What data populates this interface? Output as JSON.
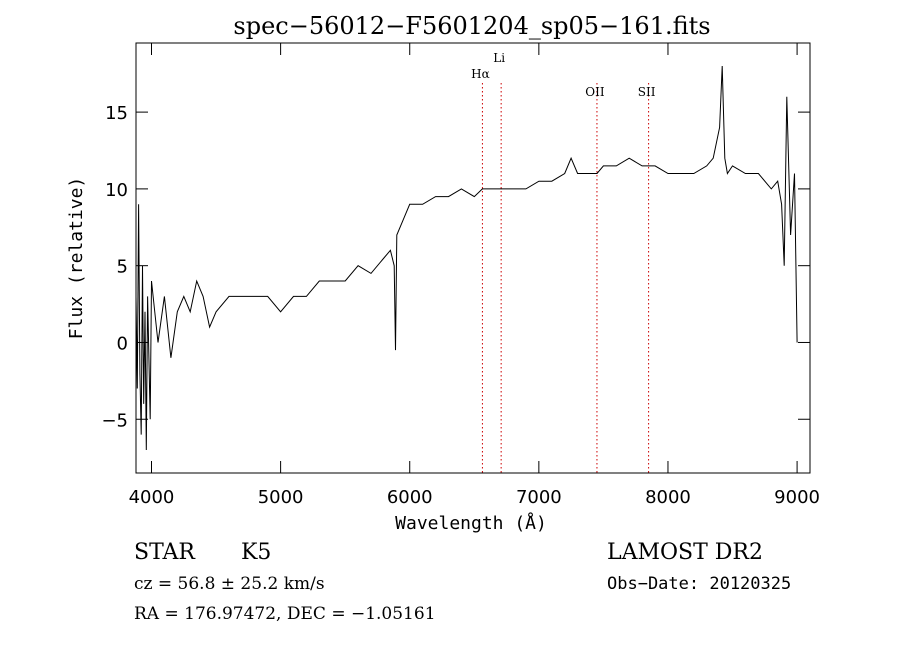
{
  "chart_data": {
    "type": "line",
    "title": "spec−56012−F5601204_sp05−161.fits",
    "xlabel": "Wavelength (Å)",
    "ylabel": "Flux (relative)",
    "xlim": [
      3880,
      9100
    ],
    "ylim": [
      -8.5,
      19.5
    ],
    "x_ticks": [
      4000,
      5000,
      6000,
      7000,
      8000,
      9000
    ],
    "y_ticks": [
      -5,
      0,
      5,
      10,
      15
    ],
    "colors": {
      "spectrum": "#000000",
      "lines": "#cc0000"
    },
    "series": [
      {
        "x": [
          3880,
          3890,
          3900,
          3910,
          3920,
          3930,
          3940,
          3950,
          3960,
          3970,
          3980,
          3990,
          4000,
          4050,
          4100,
          4150,
          4200,
          4250,
          4300,
          4350,
          4400,
          4450,
          4500,
          4600,
          4700,
          4800,
          4900,
          5000,
          5100,
          5200,
          5300,
          5400,
          5500,
          5600,
          5700,
          5800,
          5850,
          5880,
          5890,
          5900,
          5950,
          6000,
          6100,
          6200,
          6300,
          6400,
          6500,
          6563,
          6600,
          6700,
          6800,
          6900,
          7000,
          7100,
          7200,
          7250,
          7300,
          7350,
          7400,
          7450,
          7500,
          7600,
          7700,
          7800,
          7900,
          8000,
          8100,
          8200,
          8300,
          8350,
          8400,
          8420,
          8440,
          8460,
          8500,
          8600,
          8700,
          8800,
          8850,
          8880,
          8900,
          8920,
          8950,
          8980,
          9000
        ],
        "y": [
          3,
          -3,
          9,
          -2,
          -6,
          5,
          -4,
          2,
          -7,
          3,
          -1,
          -5,
          4,
          0,
          3,
          -1,
          2,
          3,
          2,
          4,
          3,
          1,
          2,
          3,
          3,
          3,
          3,
          2,
          3,
          3,
          4,
          4,
          4,
          5,
          4.5,
          5.5,
          6,
          5,
          -0.5,
          7,
          8,
          9,
          9,
          9.5,
          9.5,
          10,
          9.5,
          10,
          10,
          10,
          10,
          10,
          10.5,
          10.5,
          11,
          12,
          11,
          11,
          11,
          11,
          11.5,
          11.5,
          12,
          11.5,
          11.5,
          11,
          11,
          11,
          11.5,
          12,
          14,
          18,
          12,
          11,
          11.5,
          11,
          11,
          10,
          10.5,
          9,
          5,
          16,
          7,
          11,
          0
        ]
      }
    ],
    "lines": [
      {
        "label": "Hα",
        "x": 6563
      },
      {
        "label": "Li",
        "x": 6708
      },
      {
        "label": "OII",
        "x": 7450
      },
      {
        "label": "SII",
        "x": 7850
      }
    ]
  },
  "info": {
    "object_class": "STAR",
    "subclass": "K5",
    "survey": "LAMOST DR2",
    "cz": "cz = 56.8 ± 25.2 km/s",
    "obs_date": "Obs−Date: 20120325",
    "coords": "RA = 176.97472, DEC =  −1.05161"
  }
}
